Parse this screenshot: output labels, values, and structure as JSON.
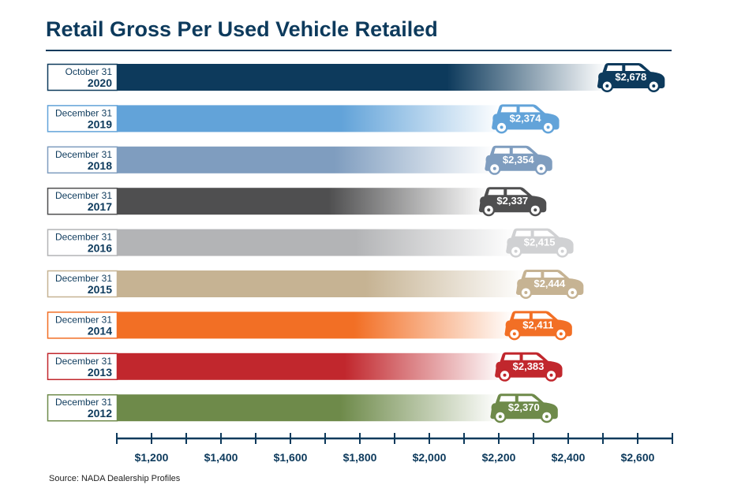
{
  "chart_data": {
    "type": "bar",
    "orientation": "horizontal",
    "title": "Retail Gross Per Used Vehicle Retailed",
    "source": "Source:  NADA Dealership Profiles",
    "categories": [
      {
        "line1": "October 31",
        "line2": "2020"
      },
      {
        "line1": "December 31",
        "line2": "2019"
      },
      {
        "line1": "December 31",
        "line2": "2018"
      },
      {
        "line1": "December 31",
        "line2": "2017"
      },
      {
        "line1": "December 31",
        "line2": "2016"
      },
      {
        "line1": "December 31",
        "line2": "2015"
      },
      {
        "line1": "December 31",
        "line2": "2014"
      },
      {
        "line1": "December 31",
        "line2": "2013"
      },
      {
        "line1": "December 31",
        "line2": "2012"
      }
    ],
    "values": [
      2678,
      2374,
      2354,
      2337,
      2415,
      2444,
      2411,
      2383,
      2370
    ],
    "value_labels": [
      "$2,678",
      "$2,374",
      "$2,354",
      "$2,337",
      "$2,415",
      "$2,444",
      "$2,411",
      "$2,383",
      "$2,370"
    ],
    "colors": [
      "#0d3a5c",
      "#62a3d9",
      "#7f9dbf",
      "#4f4f50",
      "#b3b4b6",
      "#c6b393",
      "#f26f25",
      "#c1272d",
      "#6e8a4a"
    ],
    "car_colors": [
      "#0d3a5c",
      "#62a3d9",
      "#7f9dbf",
      "#4f4f50",
      "#d0d1d3",
      "#c6b393",
      "#f26f25",
      "#c1272d",
      "#6e8a4a"
    ],
    "xlim": [
      1100,
      2700
    ],
    "xticks": [
      1200,
      1400,
      1600,
      1800,
      2000,
      2200,
      2400,
      2600
    ],
    "xtick_labels": [
      "$1,200",
      "$1,400",
      "$1,600",
      "$1,800",
      "$2,000",
      "$2,200",
      "$2,400",
      "$2,600"
    ],
    "minor_tick_step": 100,
    "title_color": "#0d3a5c"
  }
}
